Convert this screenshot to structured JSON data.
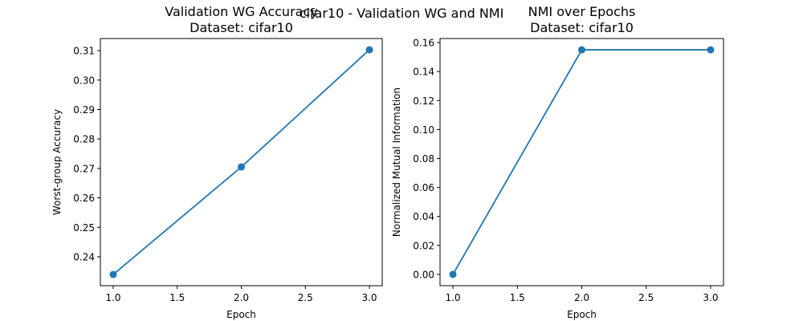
{
  "figure": {
    "suptitle": "cifar10 - Validation WG and NMI"
  },
  "chart_data": [
    {
      "type": "line",
      "title": "Validation WG Accuracy\nDataset: cifar10",
      "title_lines": [
        "Validation WG Accuracy",
        "Dataset: cifar10"
      ],
      "xlabel": "Epoch",
      "ylabel": "Worst-group Accuracy",
      "x": [
        1.0,
        2.0,
        3.0
      ],
      "series": [
        {
          "values": [
            0.234,
            0.2705,
            0.3103
          ],
          "color": "#1f77b4",
          "marker": "circle"
        }
      ],
      "xlim": [
        0.9,
        3.1
      ],
      "ylim": [
        0.2302,
        0.3141
      ],
      "xticks": [
        1.0,
        1.5,
        2.0,
        2.5,
        3.0
      ],
      "xtick_labels": [
        "1.0",
        "1.5",
        "2.0",
        "2.5",
        "3.0"
      ],
      "yticks": [
        0.24,
        0.25,
        0.26,
        0.27,
        0.28,
        0.29,
        0.3,
        0.31
      ],
      "ytick_labels": [
        "0.24",
        "0.25",
        "0.26",
        "0.27",
        "0.28",
        "0.29",
        "0.30",
        "0.31"
      ],
      "grid": false
    },
    {
      "type": "line",
      "title": "NMI over Epochs\nDataset: cifar10",
      "title_lines": [
        "NMI over Epochs",
        "Dataset: cifar10"
      ],
      "xlabel": "Epoch",
      "ylabel": "Normalized Mutual Information",
      "x": [
        1.0,
        2.0,
        3.0
      ],
      "series": [
        {
          "values": [
            0.0,
            0.155,
            0.155
          ],
          "color": "#1f77b4",
          "marker": "circle"
        }
      ],
      "xlim": [
        0.9,
        3.1
      ],
      "ylim": [
        -0.0078,
        0.1628
      ],
      "xticks": [
        1.0,
        1.5,
        2.0,
        2.5,
        3.0
      ],
      "xtick_labels": [
        "1.0",
        "1.5",
        "2.0",
        "2.5",
        "3.0"
      ],
      "yticks": [
        0.0,
        0.02,
        0.04,
        0.06,
        0.08,
        0.1,
        0.12,
        0.14,
        0.16
      ],
      "ytick_labels": [
        "0.00",
        "0.02",
        "0.04",
        "0.06",
        "0.08",
        "0.10",
        "0.12",
        "0.14",
        "0.16"
      ],
      "grid": false
    }
  ]
}
